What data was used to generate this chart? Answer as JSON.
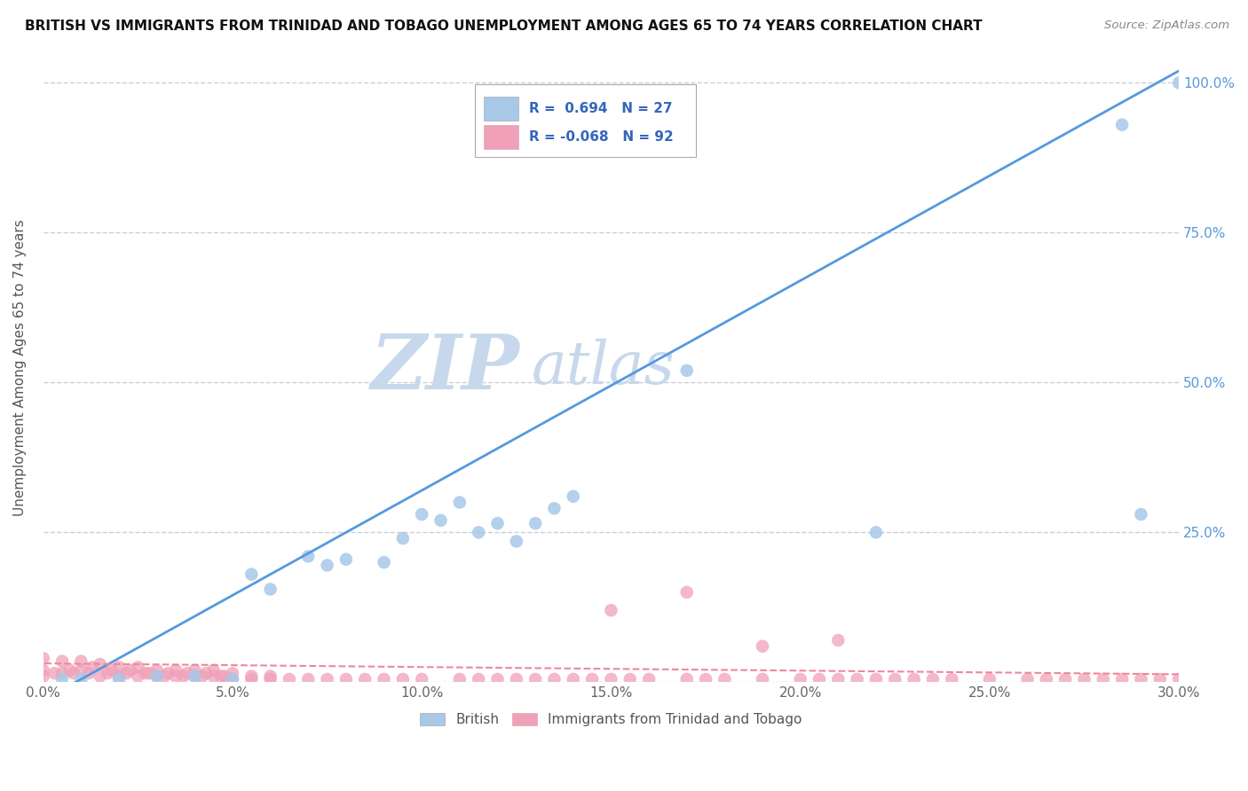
{
  "title": "BRITISH VS IMMIGRANTS FROM TRINIDAD AND TOBAGO UNEMPLOYMENT AMONG AGES 65 TO 74 YEARS CORRELATION CHART",
  "source": "Source: ZipAtlas.com",
  "ylabel": "Unemployment Among Ages 65 to 74 years",
  "xlim": [
    0.0,
    0.3
  ],
  "ylim": [
    0.0,
    1.05
  ],
  "ytick_positions": [
    0.0,
    0.25,
    0.5,
    0.75,
    1.0
  ],
  "ytick_labels": [
    "",
    "25.0%",
    "50.0%",
    "75.0%",
    "100.0%"
  ],
  "blue_R": 0.694,
  "blue_N": 27,
  "pink_R": -0.068,
  "pink_N": 92,
  "blue_color": "#A8C8E8",
  "pink_color": "#F0A0B8",
  "blue_line_color": "#5599DD",
  "pink_line_color": "#EE8899",
  "watermark_zip": "ZIP",
  "watermark_atlas": "atlas",
  "watermark_color": "#C8D8EC",
  "background_color": "#FFFFFF",
  "grid_color": "#CCCCDD",
  "blue_scatter_x": [
    0.005,
    0.01,
    0.02,
    0.03,
    0.04,
    0.05,
    0.055,
    0.06,
    0.07,
    0.075,
    0.08,
    0.09,
    0.095,
    0.1,
    0.105,
    0.11,
    0.115,
    0.12,
    0.125,
    0.13,
    0.135,
    0.14,
    0.17,
    0.22,
    0.285,
    0.29,
    0.3
  ],
  "blue_scatter_y": [
    0.005,
    0.005,
    0.005,
    0.01,
    0.01,
    0.005,
    0.18,
    0.155,
    0.21,
    0.195,
    0.205,
    0.2,
    0.24,
    0.28,
    0.27,
    0.3,
    0.25,
    0.265,
    0.235,
    0.265,
    0.29,
    0.31,
    0.52,
    0.25,
    0.93,
    0.28,
    1.0
  ],
  "pink_scatter_x": [
    0.0,
    0.0,
    0.0,
    0.003,
    0.005,
    0.005,
    0.007,
    0.008,
    0.01,
    0.01,
    0.012,
    0.013,
    0.015,
    0.015,
    0.017,
    0.018,
    0.02,
    0.02,
    0.022,
    0.023,
    0.025,
    0.025,
    0.027,
    0.028,
    0.03,
    0.03,
    0.032,
    0.033,
    0.035,
    0.035,
    0.037,
    0.038,
    0.04,
    0.04,
    0.042,
    0.043,
    0.045,
    0.045,
    0.047,
    0.048,
    0.05,
    0.05,
    0.055,
    0.055,
    0.06,
    0.06,
    0.065,
    0.07,
    0.075,
    0.08,
    0.085,
    0.09,
    0.095,
    0.1,
    0.11,
    0.115,
    0.12,
    0.125,
    0.13,
    0.135,
    0.14,
    0.145,
    0.15,
    0.155,
    0.16,
    0.17,
    0.175,
    0.18,
    0.19,
    0.2,
    0.205,
    0.21,
    0.215,
    0.22,
    0.225,
    0.23,
    0.235,
    0.24,
    0.25,
    0.26,
    0.265,
    0.27,
    0.275,
    0.28,
    0.285,
    0.29,
    0.295,
    0.3,
    0.15,
    0.17,
    0.19,
    0.21
  ],
  "pink_scatter_y": [
    0.01,
    0.02,
    0.04,
    0.015,
    0.015,
    0.035,
    0.02,
    0.015,
    0.02,
    0.035,
    0.015,
    0.025,
    0.01,
    0.03,
    0.015,
    0.02,
    0.01,
    0.025,
    0.015,
    0.02,
    0.01,
    0.025,
    0.015,
    0.015,
    0.01,
    0.02,
    0.01,
    0.015,
    0.01,
    0.02,
    0.01,
    0.015,
    0.01,
    0.02,
    0.01,
    0.015,
    0.01,
    0.02,
    0.01,
    0.01,
    0.005,
    0.015,
    0.005,
    0.01,
    0.005,
    0.01,
    0.005,
    0.005,
    0.005,
    0.005,
    0.005,
    0.005,
    0.005,
    0.005,
    0.005,
    0.005,
    0.005,
    0.005,
    0.005,
    0.005,
    0.005,
    0.005,
    0.005,
    0.005,
    0.005,
    0.005,
    0.005,
    0.005,
    0.005,
    0.005,
    0.005,
    0.005,
    0.005,
    0.005,
    0.005,
    0.005,
    0.005,
    0.005,
    0.005,
    0.005,
    0.005,
    0.005,
    0.005,
    0.005,
    0.005,
    0.005,
    0.005,
    0.005,
    0.12,
    0.15,
    0.06,
    0.07
  ]
}
